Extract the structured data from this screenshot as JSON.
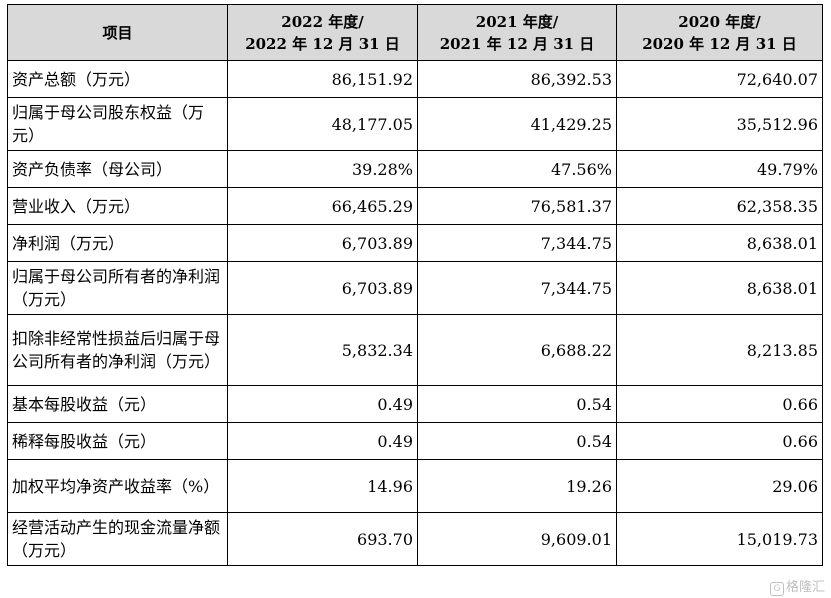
{
  "header": {
    "item": "项目",
    "columns": [
      {
        "line1": "2022 年度/",
        "line2": "2022 年 12 月 31 日"
      },
      {
        "line1": "2021 年度/",
        "line2": "2021 年 12 月 31 日"
      },
      {
        "line1": "2020 年度/",
        "line2": "2020 年 12 月 31 日"
      }
    ]
  },
  "rows": [
    {
      "label": "资产总额（万元）",
      "values": [
        "86,151.92",
        "86,392.53",
        "72,640.07"
      ]
    },
    {
      "label": "归属于母公司股东权益（万元）",
      "values": [
        "48,177.05",
        "41,429.25",
        "35,512.96"
      ]
    },
    {
      "label": "资产负债率（母公司）",
      "values": [
        "39.28%",
        "47.56%",
        "49.79%"
      ]
    },
    {
      "label": "营业收入（万元）",
      "values": [
        "66,465.29",
        "76,581.37",
        "62,358.35"
      ]
    },
    {
      "label": "净利润（万元）",
      "values": [
        "6,703.89",
        "7,344.75",
        "8,638.01"
      ]
    },
    {
      "label": "归属于母公司所有者的净利润（万元）",
      "values": [
        "6,703.89",
        "7,344.75",
        "8,638.01"
      ]
    },
    {
      "label": "扣除非经常性损益后归属于母公司所有者的净利润（万元）",
      "values": [
        "5,832.34",
        "6,688.22",
        "8,213.85"
      ]
    },
    {
      "label": "基本每股收益（元）",
      "values": [
        "0.49",
        "0.54",
        "0.66"
      ]
    },
    {
      "label": "稀释每股收益（元）",
      "values": [
        "0.49",
        "0.54",
        "0.66"
      ]
    },
    {
      "label": "加权平均净资产收益率（%）",
      "values": [
        "14.96",
        "19.26",
        "29.06"
      ]
    },
    {
      "label": "经营活动产生的现金流量净额（万元）",
      "values": [
        "693.70",
        "9,609.01",
        "15,019.73"
      ]
    }
  ],
  "watermark": {
    "icon": "gelonghui-logo-icon",
    "text": "格隆汇"
  }
}
